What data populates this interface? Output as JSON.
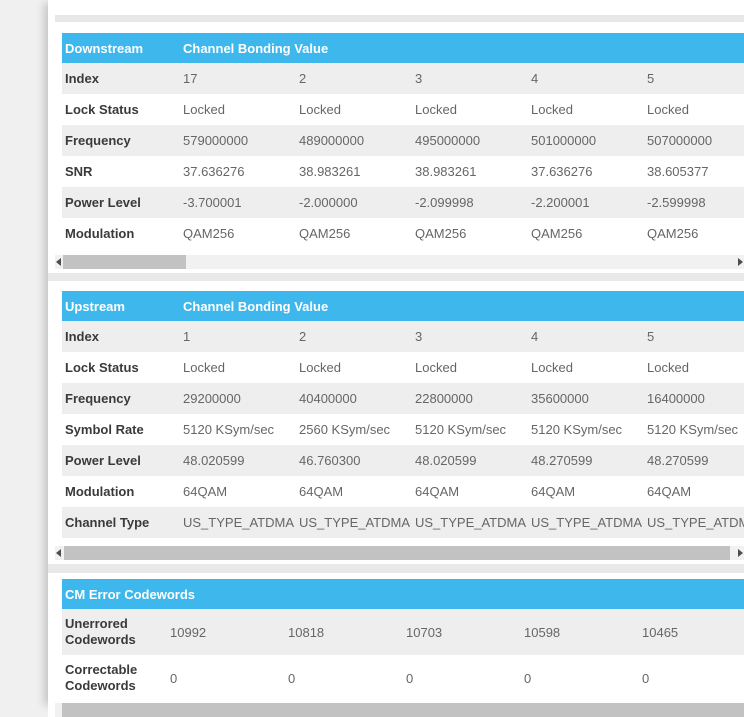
{
  "colors": {
    "header_blue": "#3db7ec",
    "row_stripe": "#eeeeee",
    "page_background": "#f0f0f0",
    "scrollbar_thumb": "#c2c2c2"
  },
  "downstream": {
    "title": "Downstream",
    "subtitle": "Channel Bonding Value",
    "rows": [
      {
        "label": "Index",
        "values": [
          "17",
          "2",
          "3",
          "4",
          "5"
        ]
      },
      {
        "label": "Lock Status",
        "values": [
          "Locked",
          "Locked",
          "Locked",
          "Locked",
          "Locked"
        ]
      },
      {
        "label": "Frequency",
        "values": [
          "579000000",
          "489000000",
          "495000000",
          "501000000",
          "507000000"
        ]
      },
      {
        "label": "SNR",
        "values": [
          "37.636276",
          "38.983261",
          "38.983261",
          "37.636276",
          "38.605377"
        ]
      },
      {
        "label": "Power Level",
        "values": [
          "-3.700001",
          "-2.000000",
          "-2.099998",
          "-2.200001",
          "-2.599998"
        ]
      },
      {
        "label": "Modulation",
        "values": [
          "QAM256",
          "QAM256",
          "QAM256",
          "QAM256",
          "QAM256"
        ]
      }
    ]
  },
  "upstream": {
    "title": "Upstream",
    "subtitle": "Channel Bonding Value",
    "rows": [
      {
        "label": "Index",
        "values": [
          "1",
          "2",
          "3",
          "4",
          "5"
        ]
      },
      {
        "label": "Lock Status",
        "values": [
          "Locked",
          "Locked",
          "Locked",
          "Locked",
          "Locked"
        ]
      },
      {
        "label": "Frequency",
        "values": [
          "29200000",
          "40400000",
          "22800000",
          "35600000",
          "16400000"
        ]
      },
      {
        "label": "Symbol Rate",
        "values": [
          "5120 KSym/sec",
          "2560 KSym/sec",
          "5120 KSym/sec",
          "5120 KSym/sec",
          "5120 KSym/sec"
        ]
      },
      {
        "label": "Power Level",
        "values": [
          "48.020599",
          "46.760300",
          "48.020599",
          "48.270599",
          "48.270599"
        ]
      },
      {
        "label": "Modulation",
        "values": [
          "64QAM",
          "64QAM",
          "64QAM",
          "64QAM",
          "64QAM"
        ]
      },
      {
        "label": "Channel Type",
        "values": [
          "US_TYPE_ATDMA",
          "US_TYPE_ATDMA",
          "US_TYPE_ATDMA",
          "US_TYPE_ATDMA",
          "US_TYPE_ATDMA"
        ]
      }
    ]
  },
  "cm_error": {
    "title": "CM Error Codewords",
    "rows": [
      {
        "label": "Unerrored Codewords",
        "values": [
          "10992",
          "10818",
          "10703",
          "10598",
          "10465"
        ]
      },
      {
        "label": "Correctable Codewords",
        "values": [
          "0",
          "0",
          "0",
          "0",
          "0"
        ]
      }
    ]
  }
}
